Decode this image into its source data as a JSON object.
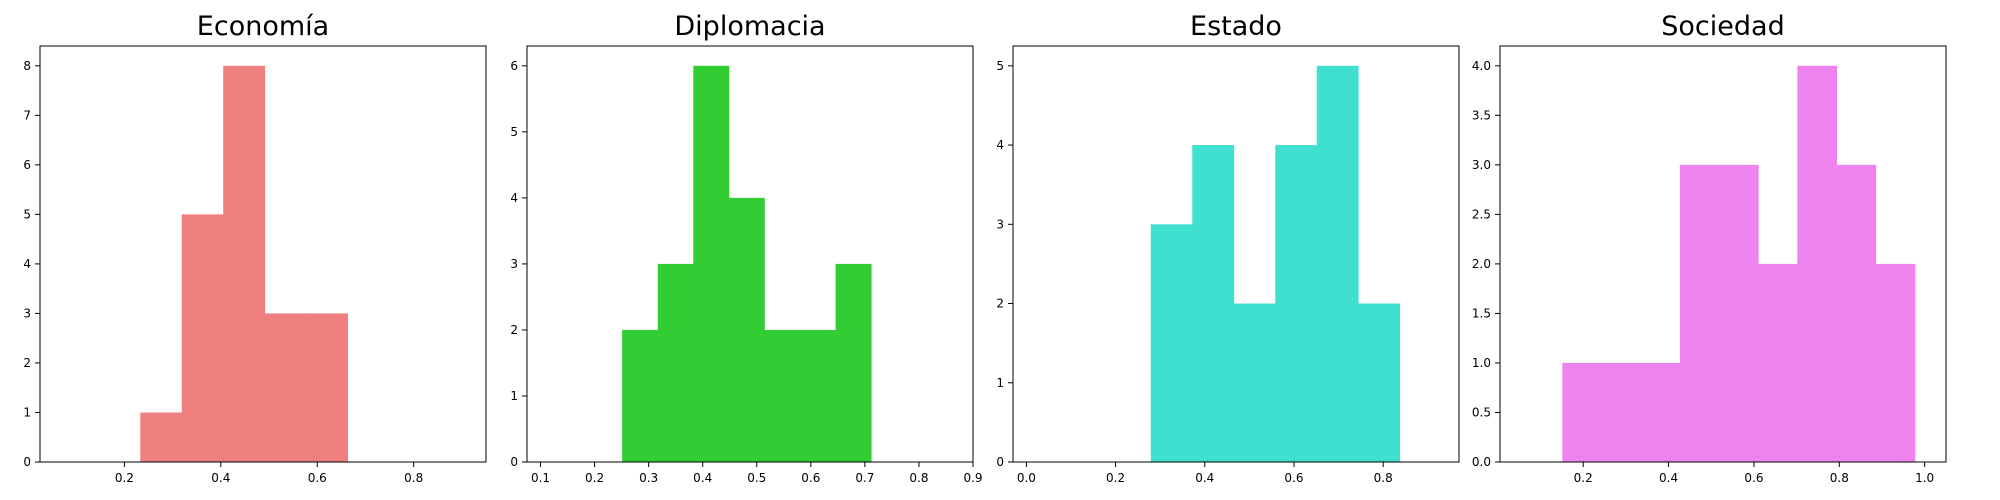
{
  "chart_data": [
    {
      "type": "bar",
      "title": "Economía",
      "color": "#F08080",
      "xlabel": "",
      "ylabel": "",
      "xlim": [
        0.025,
        0.95
      ],
      "ylim": [
        0,
        8.4
      ],
      "xticks": [
        0.2,
        0.4,
        0.6,
        0.8
      ],
      "xtick_labels": [
        "0.2",
        "0.4",
        "0.6",
        "0.8"
      ],
      "yticks": [
        0,
        1,
        2,
        3,
        4,
        5,
        6,
        7,
        8
      ],
      "ytick_labels": [
        "0",
        "1",
        "2",
        "3",
        "4",
        "5",
        "6",
        "7",
        "8"
      ],
      "bin_edges": [
        0.233,
        0.319,
        0.405,
        0.491,
        0.577,
        0.663
      ],
      "values": [
        1,
        5,
        8,
        3,
        3
      ],
      "grid": false,
      "legend": "none"
    },
    {
      "type": "bar",
      "title": "Diplomacia",
      "color": "#32CD32",
      "xlabel": "",
      "ylabel": "",
      "xlim": [
        0.075,
        0.9
      ],
      "ylim": [
        0,
        6.3
      ],
      "xticks": [
        0.1,
        0.2,
        0.3,
        0.4,
        0.5,
        0.6,
        0.7,
        0.8,
        0.9
      ],
      "xtick_labels": [
        "0.1",
        "0.2",
        "0.3",
        "0.4",
        "0.5",
        "0.6",
        "0.7",
        "0.8",
        "0.9"
      ],
      "yticks": [
        0,
        1,
        2,
        3,
        4,
        5,
        6
      ],
      "ytick_labels": [
        "0",
        "1",
        "2",
        "3",
        "4",
        "5",
        "6"
      ],
      "bin_edges": [
        0.251,
        0.3168,
        0.3826,
        0.4484,
        0.5142,
        0.58,
        0.6458,
        0.7116
      ],
      "values": [
        2,
        3,
        6,
        4,
        2,
        2,
        3
      ],
      "grid": false,
      "legend": "none"
    },
    {
      "type": "bar",
      "title": "Estado",
      "color": "#40E0D0",
      "xlabel": "",
      "ylabel": "",
      "xlim": [
        -0.03,
        0.97
      ],
      "ylim": [
        0,
        5.25
      ],
      "xticks": [
        0.0,
        0.2,
        0.4,
        0.6,
        0.8
      ],
      "xtick_labels": [
        "0.0",
        "0.2",
        "0.4",
        "0.6",
        "0.8"
      ],
      "yticks": [
        0,
        1,
        2,
        3,
        4,
        5
      ],
      "ytick_labels": [
        "0",
        "1",
        "2",
        "3",
        "4",
        "5"
      ],
      "bin_edges": [
        0.279,
        0.372,
        0.465,
        0.558,
        0.651,
        0.744,
        0.837
      ],
      "values": [
        3,
        4,
        2,
        4,
        5,
        2
      ],
      "grid": false,
      "legend": "none"
    },
    {
      "type": "bar",
      "title": "Sociedad",
      "color": "#EE82EE",
      "xlabel": "",
      "ylabel": "",
      "xlim": [
        0.005,
        1.05
      ],
      "ylim": [
        0,
        4.2
      ],
      "xticks": [
        0.2,
        0.4,
        0.6,
        0.8,
        1.0
      ],
      "xtick_labels": [
        "0.2",
        "0.4",
        "0.6",
        "0.8",
        "1.0"
      ],
      "yticks": [
        0,
        0.5,
        1.0,
        1.5,
        2.0,
        2.5,
        3.0,
        3.5,
        4.0
      ],
      "ytick_labels": [
        "0.0",
        "0.5",
        "1.0",
        "1.5",
        "2.0",
        "2.5",
        "3.0",
        "3.5",
        "4.0"
      ],
      "bin_edges": [
        0.151,
        0.2428,
        0.3346,
        0.4264,
        0.5182,
        0.61,
        0.7018,
        0.7936,
        0.8854,
        0.9772
      ],
      "values": [
        1,
        1,
        1,
        3,
        3,
        2,
        4,
        3,
        2
      ],
      "grid": false,
      "legend": "none"
    }
  ]
}
